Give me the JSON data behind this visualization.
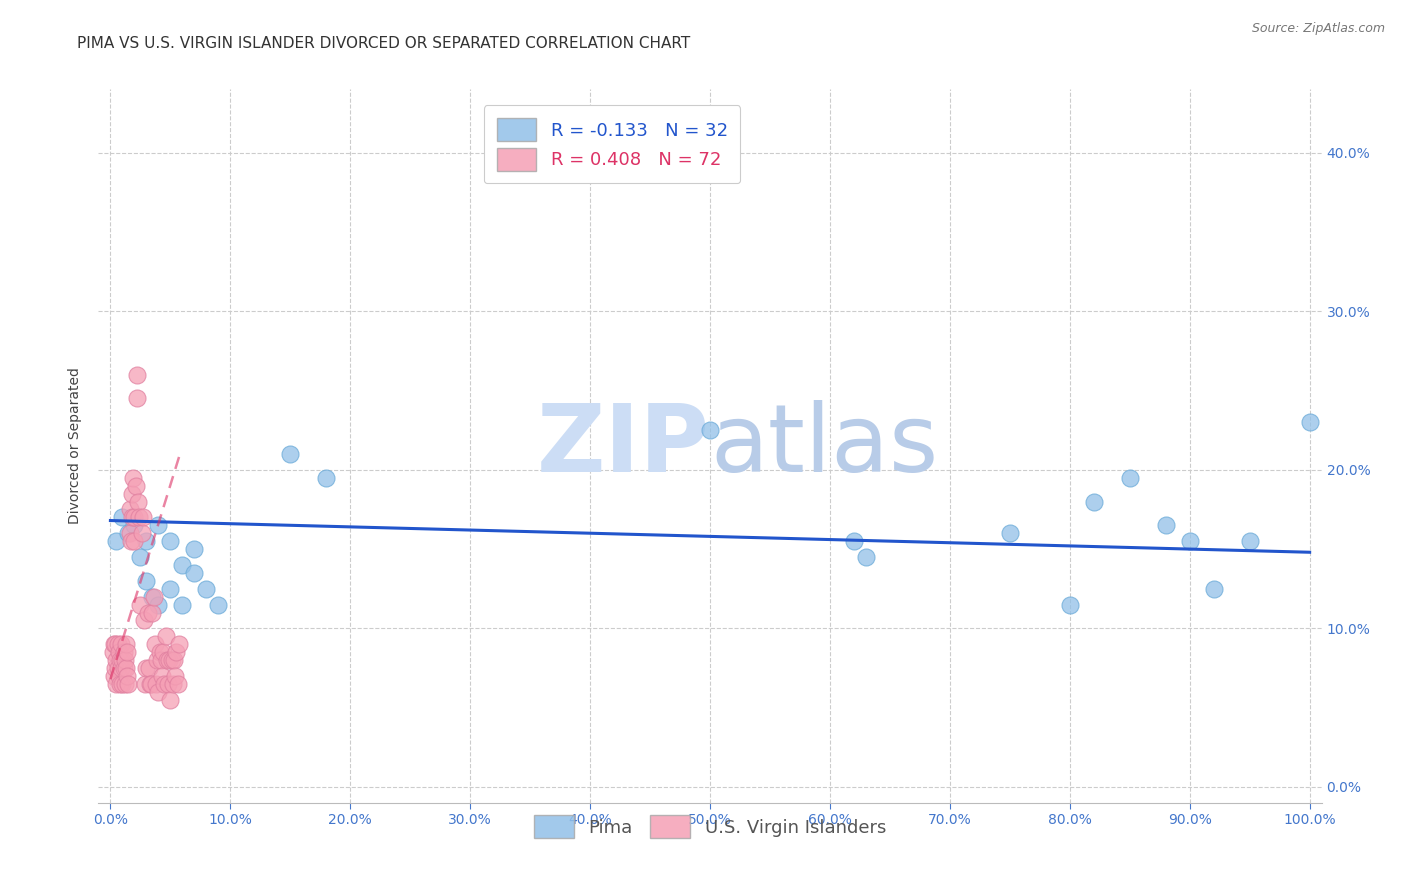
{
  "title": "PIMA VS U.S. VIRGIN ISLANDER DIVORCED OR SEPARATED CORRELATION CHART",
  "source": "Source: ZipAtlas.com",
  "ylabel": "Divorced or Separated",
  "legend_blue_R": "-0.133",
  "legend_blue_N": "32",
  "legend_pink_R": "0.408",
  "legend_pink_N": "72",
  "legend_blue_label": "Pima",
  "legend_pink_label": "U.S. Virgin Islanders",
  "xlim": [
    -0.01,
    1.01
  ],
  "ylim": [
    -0.01,
    0.44
  ],
  "xticks": [
    0.0,
    0.1,
    0.2,
    0.3,
    0.4,
    0.5,
    0.6,
    0.7,
    0.8,
    0.9,
    1.0
  ],
  "yticks": [
    0.0,
    0.1,
    0.2,
    0.3,
    0.4
  ],
  "blue_scatter_x": [
    0.005,
    0.01,
    0.015,
    0.02,
    0.025,
    0.03,
    0.04,
    0.05,
    0.06,
    0.07,
    0.08,
    0.09,
    0.03,
    0.035,
    0.04,
    0.05,
    0.06,
    0.07,
    0.15,
    0.18,
    0.5,
    0.62,
    0.63,
    0.75,
    0.8,
    0.82,
    0.85,
    0.88,
    0.9,
    0.92,
    0.95,
    1.0
  ],
  "blue_scatter_y": [
    0.155,
    0.17,
    0.16,
    0.165,
    0.145,
    0.155,
    0.165,
    0.155,
    0.14,
    0.15,
    0.125,
    0.115,
    0.13,
    0.12,
    0.115,
    0.125,
    0.115,
    0.135,
    0.21,
    0.195,
    0.225,
    0.155,
    0.145,
    0.16,
    0.115,
    0.18,
    0.195,
    0.165,
    0.155,
    0.125,
    0.155,
    0.23
  ],
  "pink_scatter_x": [
    0.002,
    0.003,
    0.003,
    0.004,
    0.004,
    0.005,
    0.005,
    0.006,
    0.006,
    0.007,
    0.007,
    0.008,
    0.008,
    0.009,
    0.009,
    0.01,
    0.01,
    0.011,
    0.011,
    0.012,
    0.012,
    0.013,
    0.013,
    0.014,
    0.014,
    0.015,
    0.016,
    0.016,
    0.017,
    0.018,
    0.018,
    0.019,
    0.02,
    0.02,
    0.021,
    0.022,
    0.022,
    0.023,
    0.024,
    0.025,
    0.026,
    0.027,
    0.028,
    0.029,
    0.03,
    0.031,
    0.032,
    0.033,
    0.034,
    0.035,
    0.036,
    0.037,
    0.038,
    0.039,
    0.04,
    0.041,
    0.042,
    0.043,
    0.044,
    0.045,
    0.046,
    0.047,
    0.048,
    0.049,
    0.05,
    0.051,
    0.052,
    0.053,
    0.054,
    0.055,
    0.056,
    0.057
  ],
  "pink_scatter_y": [
    0.085,
    0.07,
    0.09,
    0.075,
    0.09,
    0.065,
    0.08,
    0.075,
    0.09,
    0.07,
    0.085,
    0.065,
    0.08,
    0.075,
    0.09,
    0.065,
    0.08,
    0.075,
    0.085,
    0.065,
    0.08,
    0.075,
    0.09,
    0.07,
    0.085,
    0.065,
    0.16,
    0.175,
    0.155,
    0.17,
    0.185,
    0.195,
    0.155,
    0.17,
    0.19,
    0.245,
    0.26,
    0.18,
    0.17,
    0.115,
    0.16,
    0.17,
    0.105,
    0.065,
    0.075,
    0.11,
    0.075,
    0.065,
    0.065,
    0.11,
    0.12,
    0.09,
    0.065,
    0.08,
    0.06,
    0.085,
    0.08,
    0.07,
    0.085,
    0.065,
    0.095,
    0.08,
    0.065,
    0.08,
    0.055,
    0.08,
    0.065,
    0.08,
    0.07,
    0.085,
    0.065,
    0.09
  ],
  "blue_line_x": [
    0.0,
    1.0
  ],
  "blue_line_y": [
    0.168,
    0.148
  ],
  "pink_line_x": [
    0.0,
    0.058
  ],
  "pink_line_y": [
    0.068,
    0.21
  ],
  "background_color": "#ffffff",
  "grid_color": "#cccccc",
  "blue_color": "#92c0e8",
  "pink_color": "#f5a0b5",
  "blue_edge_color": "#6aaad8",
  "pink_edge_color": "#e080a0",
  "blue_line_color": "#2255cc",
  "pink_line_color": "#dd3366",
  "watermark_zip": "ZIP",
  "watermark_atlas": "atlas",
  "watermark_color": "#ccddf5",
  "title_fontsize": 11,
  "source_fontsize": 9,
  "axis_label_fontsize": 10,
  "tick_fontsize": 10,
  "legend_fontsize": 13
}
